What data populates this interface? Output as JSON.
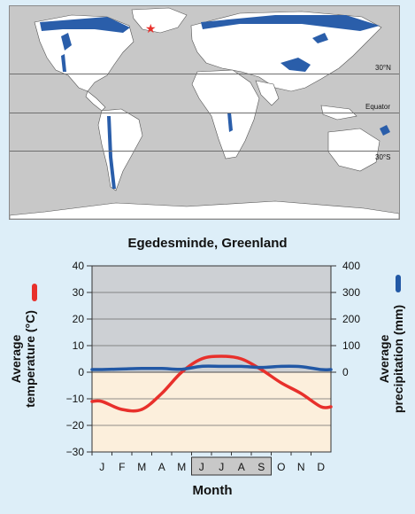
{
  "map": {
    "labels": {
      "lat_30n": "30°N",
      "equator": "Equator",
      "lat_30s": "30°S"
    }
  },
  "chart_data": {
    "type": "line",
    "title": "Egedesminde, Greenland",
    "xlabel": "Month",
    "categories": [
      "J",
      "F",
      "M",
      "A",
      "M",
      "J",
      "J",
      "A",
      "S",
      "O",
      "N",
      "D"
    ],
    "highlighted_months": [
      "J",
      "J",
      "A",
      "S"
    ],
    "y_left": {
      "label_line1": "Average",
      "label_line2": "temperature (°C)",
      "ylim": [
        -30,
        40
      ],
      "ticks": [
        40,
        30,
        20,
        10,
        0,
        -10,
        -20,
        -30
      ]
    },
    "y_right": {
      "label_line1": "Average",
      "label_line2": "precipitation (mm)",
      "ylim": [
        0,
        400
      ],
      "ticks": [
        400,
        300,
        200,
        100,
        0
      ]
    },
    "series": [
      {
        "color": "#e8302b",
        "axis": "left",
        "values": [
          -11,
          -14,
          -14,
          -8,
          0,
          5,
          6,
          5,
          1,
          -4,
          -8,
          -13
        ]
      },
      {
        "color": "#2258a5",
        "axis": "right",
        "values": [
          10,
          12,
          14,
          14,
          11,
          22,
          22,
          22,
          18,
          22,
          21,
          10
        ]
      }
    ],
    "colors": {
      "above_zero": "#cdd0d4",
      "below_zero": "#fcefdc",
      "highlight": "#c8c8c8"
    }
  }
}
